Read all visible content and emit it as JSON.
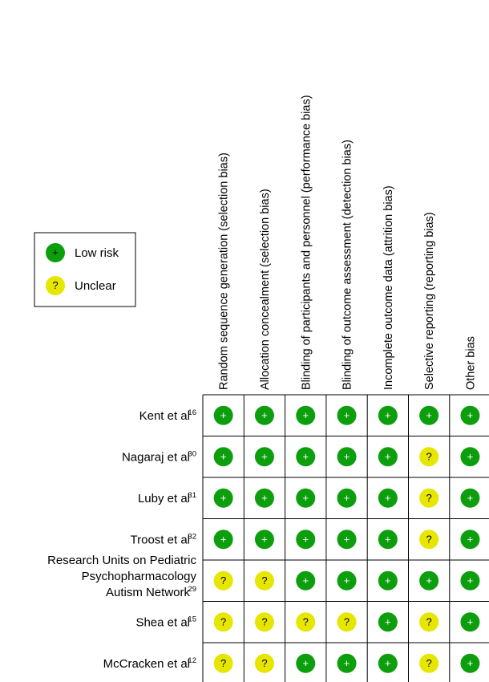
{
  "legend": {
    "items": [
      {
        "symbol": "+",
        "label": "Low risk",
        "color": "#0d9e0d"
      },
      {
        "symbol": "?",
        "label": "Unclear",
        "color": "#e6e600"
      }
    ]
  },
  "columns": [
    "Random sequence generation (selection bias)",
    "Allocation concealment (selection bias)",
    "Blinding of participants and personnel (performance bias)",
    "Blinding of outcome assessment (detection bias)",
    "Incomplete outcome data (attrition bias)",
    "Selective reporting (reporting bias)",
    "Other bias"
  ],
  "rows": [
    {
      "label_lines": [
        "Kent et al"
      ],
      "sup": "16",
      "ratings": [
        "low",
        "low",
        "low",
        "low",
        "low",
        "low",
        "low"
      ]
    },
    {
      "label_lines": [
        "Nagaraj et al"
      ],
      "sup": "30",
      "ratings": [
        "low",
        "low",
        "low",
        "low",
        "low",
        "unclear",
        "low"
      ]
    },
    {
      "label_lines": [
        "Luby et al"
      ],
      "sup": "31",
      "ratings": [
        "low",
        "low",
        "low",
        "low",
        "low",
        "unclear",
        "low"
      ]
    },
    {
      "label_lines": [
        "Troost et al"
      ],
      "sup": "32",
      "ratings": [
        "low",
        "low",
        "low",
        "low",
        "low",
        "unclear",
        "low"
      ]
    },
    {
      "label_lines": [
        "Research Units on Pediatric",
        "Psychopharmacology",
        "Autism Network"
      ],
      "sup": "29",
      "ratings": [
        "unclear",
        "unclear",
        "low",
        "low",
        "low",
        "low",
        "low"
      ]
    },
    {
      "label_lines": [
        "Shea et al"
      ],
      "sup": "15",
      "ratings": [
        "unclear",
        "unclear",
        "unclear",
        "unclear",
        "low",
        "unclear",
        "low"
      ]
    },
    {
      "label_lines": [
        "McCracken et al"
      ],
      "sup": "12",
      "ratings": [
        "unclear",
        "unclear",
        "low",
        "low",
        "low",
        "unclear",
        "low"
      ]
    }
  ],
  "symbols": {
    "low": "+",
    "unclear": "?"
  },
  "colors": {
    "low": "#0d9e0d",
    "unclear": "#e6e600",
    "grid": "#000000"
  }
}
